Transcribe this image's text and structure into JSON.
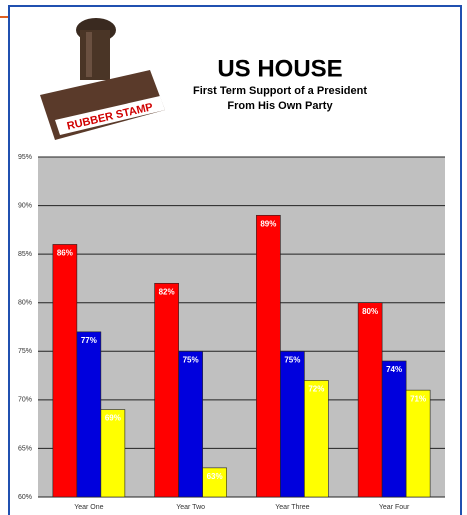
{
  "chart_data": {
    "type": "bar",
    "title": "US HOUSE",
    "subtitle": "First Term Support of a President From His Own Party",
    "stamp_text": "RUBBER STAMP",
    "categories": [
      "Year One",
      "Year Two",
      "Year Three",
      "Year Four"
    ],
    "series": [
      {
        "color": "#ff0000",
        "values": [
          86,
          82,
          89,
          80
        ],
        "value_labels": [
          "86%",
          "82%",
          "89%",
          "80%"
        ]
      },
      {
        "color": "#0000dd",
        "values": [
          77,
          75,
          75,
          74
        ],
        "value_labels": [
          "77%",
          "75%",
          "75%",
          "74%"
        ]
      },
      {
        "color": "#ffff00",
        "values": [
          69,
          63,
          72,
          71
        ],
        "value_labels": [
          "69%",
          "63%",
          "72%",
          "71%"
        ]
      }
    ],
    "ylim": [
      60,
      95
    ],
    "yticks": [
      {
        "value": 60,
        "label": "60%"
      },
      {
        "value": 65,
        "label": "65%"
      },
      {
        "value": 70,
        "label": "70%"
      },
      {
        "value": 75,
        "label": "75%"
      },
      {
        "value": 80,
        "label": "80%"
      },
      {
        "value": 85,
        "label": "85%"
      },
      {
        "value": 90,
        "label": "90%"
      },
      {
        "value": 95,
        "label": "95%"
      }
    ],
    "grid": true,
    "plot_background": "#c0c0c0"
  }
}
